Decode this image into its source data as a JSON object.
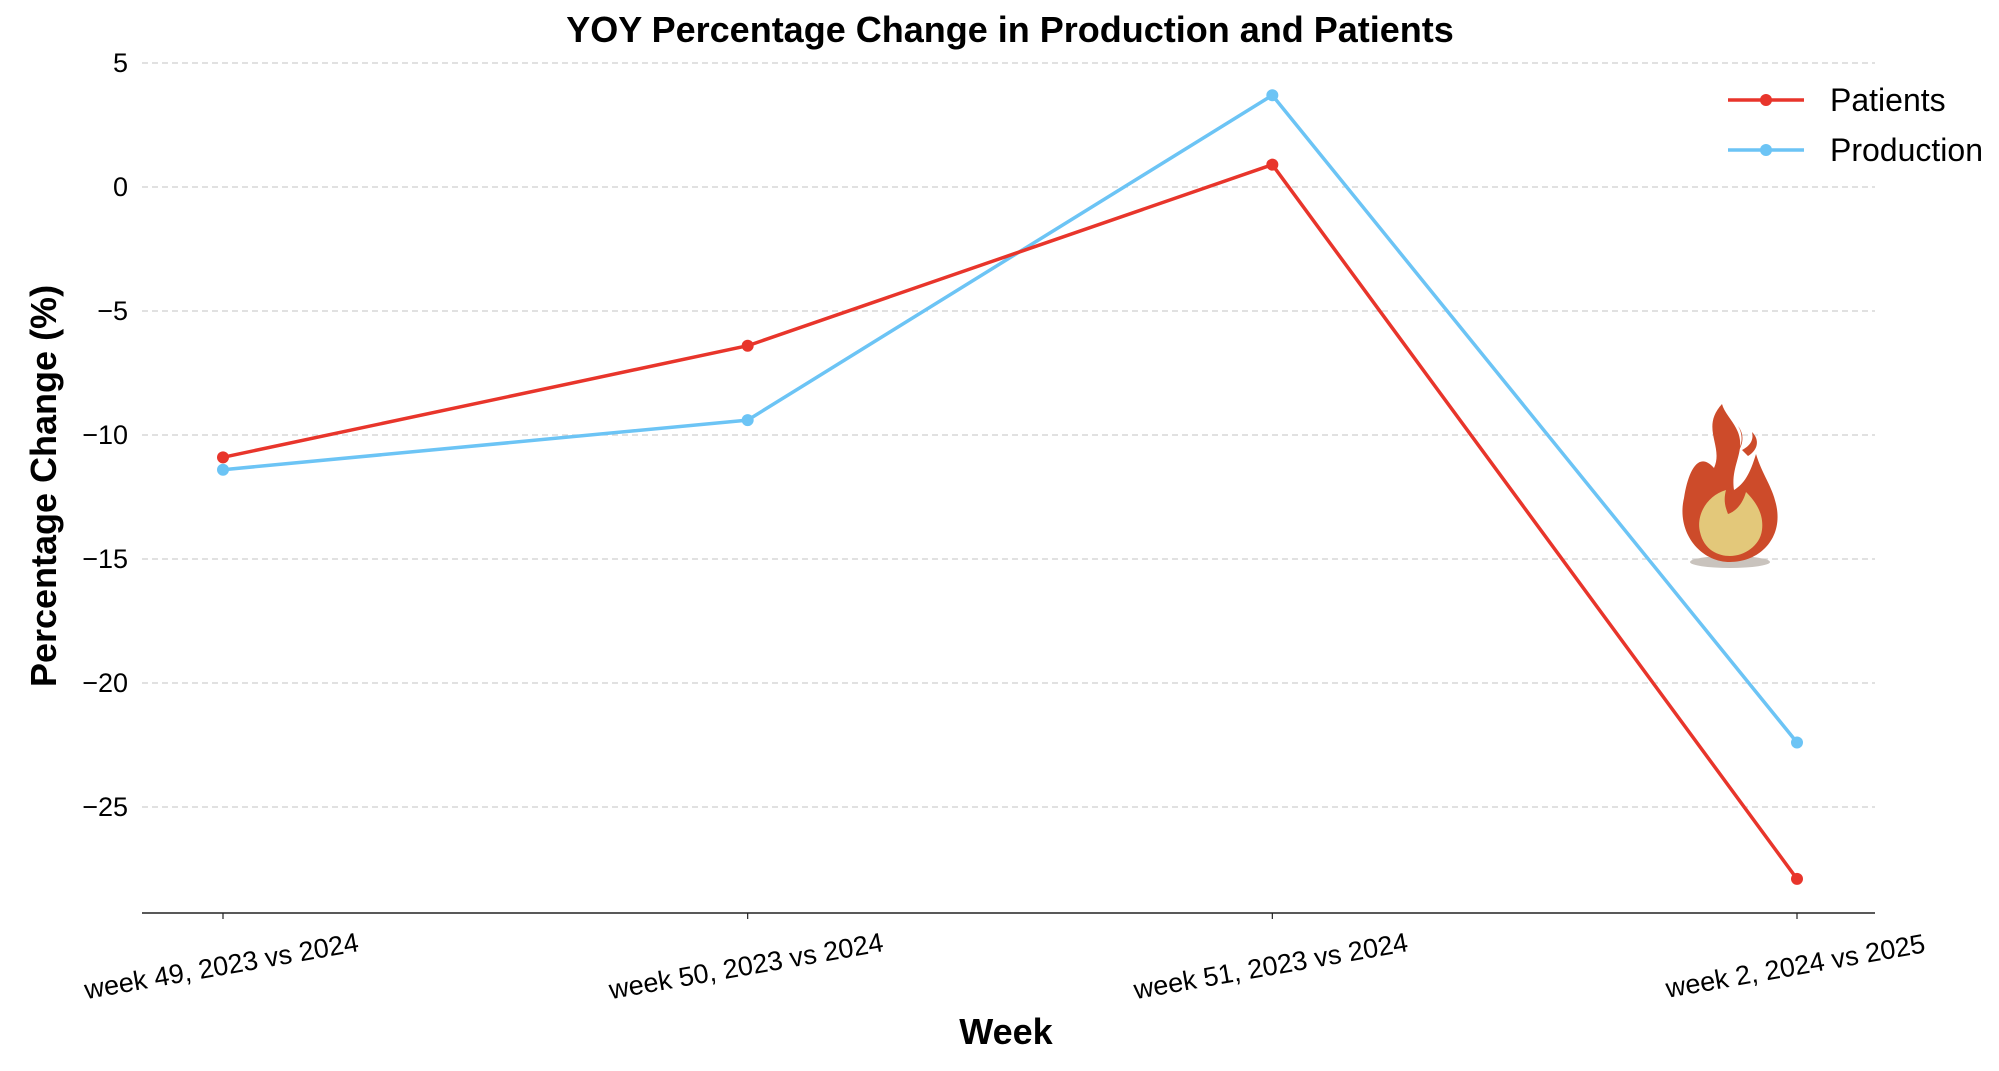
{
  "chart_data": {
    "type": "line",
    "title": "YOY Percentage Change in Production and Patients",
    "xlabel": "Week",
    "ylabel": "Percentage Change (%)",
    "categories": [
      "week 49, 2023 vs 2024",
      "week 50, 2023 vs 2024",
      "week 51, 2023 vs 2024",
      "week 2, 2024 vs 2025"
    ],
    "y_ticks": [
      5,
      0,
      -5,
      -10,
      -15,
      -20,
      -25
    ],
    "y_tick_labels": [
      "5",
      "0",
      "−5",
      "−10",
      "−15",
      "−20",
      "−25"
    ],
    "ylim": [
      -29.4,
      5
    ],
    "grid": "horizontal dashed",
    "legend_position": "top-right",
    "series": [
      {
        "name": "Patients",
        "color": "#e8352b",
        "values": [
          -10.9,
          -6.4,
          0.9,
          -27.9
        ]
      },
      {
        "name": "Production",
        "color": "#6cc4f5",
        "values": [
          -11.4,
          -9.4,
          3.7,
          -22.4
        ]
      }
    ],
    "annotation_icon": "fire-icon"
  }
}
